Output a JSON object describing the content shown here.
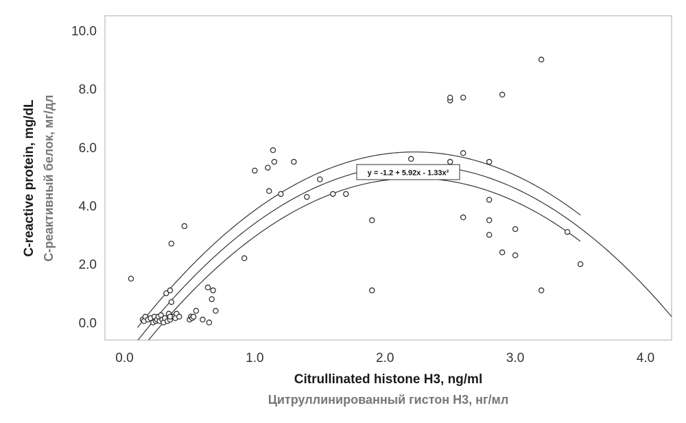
{
  "chart_data": {
    "type": "scatter",
    "xlabel": "Citrullinated histone H3, ng/ml",
    "xlabel_sub": "Цитруллинированный гистон Н3, нг/мл",
    "ylabel": "C-reactive protein, mg/dL",
    "ylabel_sub": "С-реактивный белок, мг/дл",
    "xlim": [
      -0.15,
      4.2
    ],
    "ylim": [
      -0.6,
      10.5
    ],
    "x_ticks": [
      "0.0",
      "1.0",
      "2.0",
      "3.0",
      "4.0"
    ],
    "y_ticks": [
      "0.0",
      "2.0",
      "4.0",
      "6.0",
      "8.0",
      "10.0"
    ],
    "x_tick_values": [
      0,
      1,
      2,
      3,
      4
    ],
    "y_tick_values": [
      0,
      2,
      4,
      6,
      8,
      10
    ],
    "grid": false,
    "annotation": "y = -1.2 + 5.92x - 1.33x²",
    "fit": {
      "intercept": -1.2,
      "b1": 5.92,
      "b2": -1.33,
      "x_range": [
        0.1,
        4.2
      ]
    },
    "confidence_band": {
      "half_width": 0.45,
      "x_range": [
        0.1,
        3.5
      ]
    },
    "points": {
      "x": [
        0.05,
        0.14,
        0.15,
        0.16,
        0.18,
        0.2,
        0.22,
        0.23,
        0.24,
        0.25,
        0.26,
        0.27,
        0.28,
        0.29,
        0.3,
        0.31,
        0.33,
        0.34,
        0.35,
        0.35,
        0.36,
        0.37,
        0.38,
        0.39,
        0.4,
        0.42,
        0.46,
        0.5,
        0.51,
        0.52,
        0.53,
        0.55,
        0.6,
        0.64,
        0.65,
        0.67,
        0.68,
        0.7,
        0.36,
        0.32,
        0.35,
        0.92,
        1.0,
        1.1,
        1.11,
        1.14,
        1.15,
        1.2,
        1.3,
        1.4,
        1.5,
        1.6,
        1.7,
        1.9,
        1.9,
        2.2,
        2.5,
        2.5,
        2.5,
        2.6,
        2.6,
        2.6,
        2.8,
        2.8,
        2.8,
        2.8,
        2.9,
        2.9,
        3.0,
        3.0,
        3.2,
        3.2,
        3.4,
        3.5
      ],
      "y": [
        1.5,
        0.1,
        0.05,
        0.2,
        0.1,
        0.15,
        0.0,
        0.2,
        0.05,
        0.1,
        0.2,
        0.05,
        0.25,
        0.1,
        0.0,
        0.15,
        0.05,
        0.3,
        0.1,
        1.1,
        0.7,
        0.2,
        0.2,
        0.15,
        0.3,
        0.2,
        3.3,
        0.1,
        0.2,
        0.15,
        0.2,
        0.4,
        0.1,
        1.2,
        0.0,
        0.8,
        1.1,
        0.4,
        2.7,
        1.0,
        0.2,
        2.2,
        5.2,
        5.3,
        4.5,
        5.9,
        5.5,
        4.4,
        5.5,
        4.3,
        4.9,
        4.4,
        4.4,
        1.1,
        3.5,
        5.6,
        7.6,
        7.7,
        5.5,
        7.7,
        5.8,
        3.6,
        5.5,
        4.2,
        3.5,
        3.0,
        7.8,
        2.4,
        3.2,
        2.3,
        9.0,
        1.1,
        3.1,
        2.0
      ]
    }
  }
}
